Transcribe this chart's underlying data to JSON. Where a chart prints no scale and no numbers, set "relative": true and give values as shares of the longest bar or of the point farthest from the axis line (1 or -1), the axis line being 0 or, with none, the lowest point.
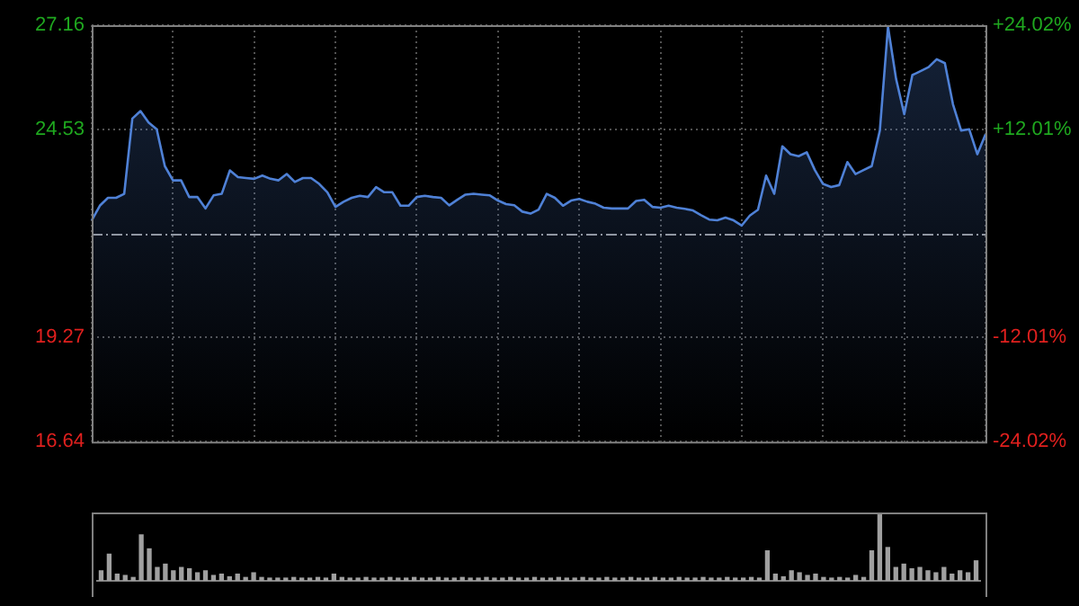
{
  "chart_data": [
    {
      "type": "area",
      "categories": [
        null,
        null,
        null,
        null,
        null,
        null,
        null,
        null,
        null,
        null,
        null,
        null,
        null,
        null,
        null,
        null,
        null,
        null,
        null,
        null,
        null,
        null,
        null,
        null,
        null,
        null,
        null,
        null,
        null,
        null,
        null,
        null,
        null,
        null,
        null,
        null,
        null,
        null,
        null,
        null,
        null,
        null,
        null,
        null,
        null,
        null,
        null,
        null,
        null,
        null,
        null,
        null,
        null,
        null,
        null,
        null,
        null,
        null,
        null,
        null,
        null,
        null,
        null,
        null,
        null,
        null,
        null,
        null,
        null,
        null,
        null,
        null,
        null,
        null,
        null,
        null,
        null,
        null,
        null,
        null,
        null,
        null,
        null,
        null,
        null,
        null,
        null,
        null,
        null,
        null,
        null,
        null,
        null,
        null,
        null,
        null,
        null,
        null,
        null,
        null,
        null,
        null,
        null,
        null,
        null,
        null,
        null,
        null,
        null,
        null,
        null
      ],
      "ylim": [
        16.64,
        27.16
      ],
      "yticks": [
        16.64,
        19.27,
        24.53,
        27.16
      ],
      "y2lim": [
        -24.02,
        24.02
      ],
      "y2ticks": [
        {
          "value": -24.02,
          "label": "-24.02%"
        },
        {
          "value": -12.01,
          "label": "-12.01%"
        },
        {
          "value": 12.01,
          "label": "+12.01%"
        },
        {
          "value": 24.02,
          "label": "+24.02%"
        }
      ],
      "grid": true,
      "legend": false,
      "ref_lines": [
        {
          "axis": "y2",
          "value": 0,
          "label": null,
          "line_style": "dashed"
        }
      ],
      "series": [
        {
          "color": "#4f81d6",
          "values": [
            22.23,
            22.6,
            22.8,
            22.8,
            22.9,
            24.8,
            24.99,
            24.7,
            24.53,
            23.6,
            23.24,
            23.24,
            22.82,
            22.82,
            22.53,
            22.86,
            22.9,
            23.49,
            23.32,
            23.3,
            23.28,
            23.36,
            23.28,
            23.24,
            23.4,
            23.2,
            23.3,
            23.3,
            23.15,
            22.94,
            22.57,
            22.7,
            22.8,
            22.85,
            22.82,
            23.07,
            22.94,
            22.94,
            22.6,
            22.6,
            22.82,
            22.85,
            22.82,
            22.8,
            22.61,
            22.75,
            22.88,
            22.9,
            22.88,
            22.86,
            22.73,
            22.64,
            22.61,
            22.45,
            22.4,
            22.5,
            22.9,
            22.8,
            22.6,
            22.73,
            22.77,
            22.7,
            22.65,
            22.55,
            22.53,
            22.53,
            22.53,
            22.72,
            22.75,
            22.57,
            22.55,
            22.6,
            22.55,
            22.52,
            22.48,
            22.36,
            22.25,
            22.23,
            22.3,
            22.23,
            22.1,
            22.35,
            22.5,
            23.36,
            22.9,
            24.1,
            23.9,
            23.85,
            23.95,
            23.5,
            23.15,
            23.07,
            23.12,
            23.7,
            23.4,
            23.5,
            23.6,
            24.5,
            27.12,
            25.8,
            24.91,
            25.9,
            26.0,
            26.1,
            26.3,
            26.2,
            25.16,
            24.5,
            24.53,
            23.9,
            24.4
          ]
        }
      ]
    },
    {
      "type": "bar",
      "relative": true,
      "legend": false,
      "categories": [
        null,
        null,
        null,
        null,
        null,
        null,
        null,
        null,
        null,
        null,
        null,
        null,
        null,
        null,
        null,
        null,
        null,
        null,
        null,
        null,
        null,
        null,
        null,
        null,
        null,
        null,
        null,
        null,
        null,
        null,
        null,
        null,
        null,
        null,
        null,
        null,
        null,
        null,
        null,
        null,
        null,
        null,
        null,
        null,
        null,
        null,
        null,
        null,
        null,
        null,
        null,
        null,
        null,
        null,
        null,
        null,
        null,
        null,
        null,
        null,
        null,
        null,
        null,
        null,
        null,
        null,
        null,
        null,
        null,
        null,
        null,
        null,
        null,
        null,
        null,
        null,
        null,
        null,
        null,
        null,
        null,
        null,
        null,
        null,
        null,
        null,
        null,
        null,
        null,
        null,
        null,
        null,
        null,
        null,
        null,
        null,
        null,
        null,
        null,
        null,
        null,
        null,
        null,
        null,
        null,
        null,
        null,
        null,
        null,
        null
      ],
      "color": "#a0a0a0",
      "values": [
        0.15,
        0.4,
        0.1,
        0.08,
        0.05,
        0.69,
        0.48,
        0.2,
        0.25,
        0.15,
        0.2,
        0.18,
        0.12,
        0.15,
        0.08,
        0.1,
        0.06,
        0.1,
        0.05,
        0.12,
        0.05,
        0.04,
        0.04,
        0.04,
        0.05,
        0.04,
        0.04,
        0.05,
        0.04,
        0.1,
        0.05,
        0.04,
        0.04,
        0.05,
        0.04,
        0.04,
        0.05,
        0.04,
        0.04,
        0.05,
        0.04,
        0.04,
        0.05,
        0.04,
        0.04,
        0.05,
        0.04,
        0.04,
        0.05,
        0.04,
        0.04,
        0.05,
        0.04,
        0.04,
        0.05,
        0.04,
        0.04,
        0.05,
        0.04,
        0.04,
        0.05,
        0.04,
        0.04,
        0.05,
        0.04,
        0.04,
        0.05,
        0.04,
        0.04,
        0.05,
        0.04,
        0.04,
        0.05,
        0.04,
        0.04,
        0.05,
        0.04,
        0.04,
        0.05,
        0.04,
        0.04,
        0.05,
        0.04,
        0.45,
        0.1,
        0.06,
        0.15,
        0.12,
        0.08,
        0.1,
        0.05,
        0.04,
        0.05,
        0.04,
        0.08,
        0.05,
        0.45,
        1.0,
        0.5,
        0.2,
        0.25,
        0.18,
        0.2,
        0.15,
        0.12,
        0.2,
        0.1,
        0.15,
        0.12,
        0.3
      ]
    }
  ]
}
